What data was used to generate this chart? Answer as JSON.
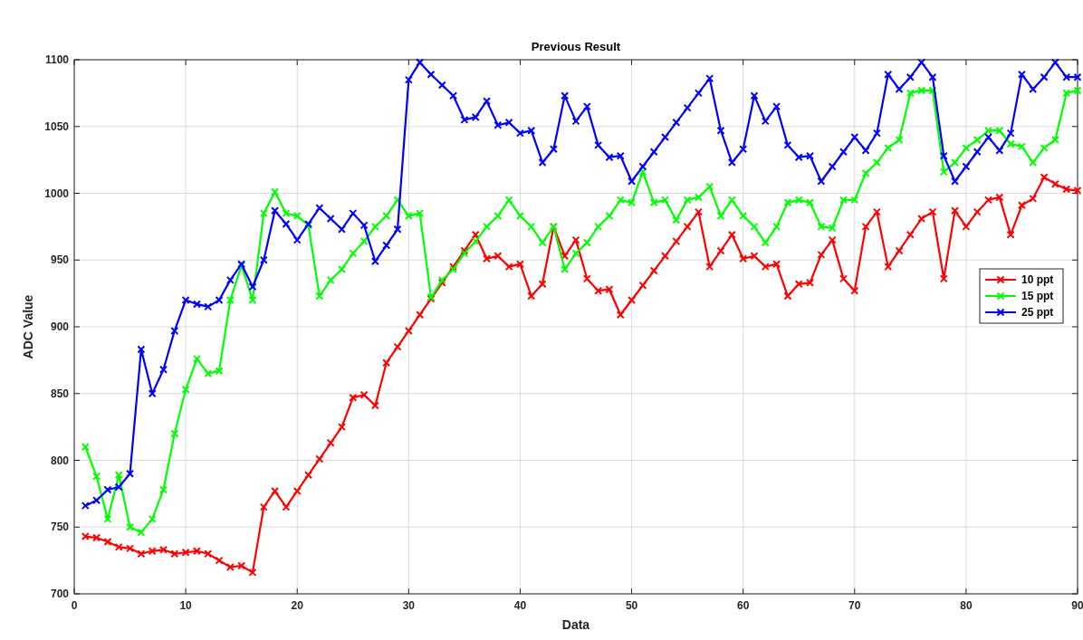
{
  "chart_data": {
    "type": "line",
    "title": "Previous Result",
    "xlabel": "Data",
    "ylabel": "ADC Value",
    "x": [
      1,
      2,
      3,
      4,
      5,
      6,
      7,
      8,
      9,
      10,
      11,
      12,
      13,
      14,
      15,
      16,
      17,
      18,
      19,
      20,
      21,
      22,
      23,
      24,
      25,
      26,
      27,
      28,
      29,
      30,
      31,
      32,
      33,
      34,
      35,
      36,
      37,
      38,
      39,
      40,
      41,
      42,
      43,
      44,
      45,
      46,
      47,
      48,
      49,
      50,
      51,
      52,
      53,
      54,
      55,
      56,
      57,
      58,
      59,
      60,
      61,
      62,
      63,
      64,
      65,
      66,
      67,
      68,
      69,
      70,
      71,
      72,
      73,
      74,
      75,
      76,
      77,
      78,
      79,
      80,
      81,
      82,
      83,
      84,
      85,
      86,
      87,
      88,
      89,
      90
    ],
    "series": [
      {
        "name": "10 ppt",
        "color": "#ff0000",
        "values": [
          743,
          742,
          739,
          735,
          734,
          730,
          732,
          733,
          730,
          731,
          732,
          730,
          725,
          720,
          721,
          716,
          765,
          777,
          765,
          777,
          789,
          801,
          813,
          825,
          847,
          849,
          841,
          873,
          885,
          897,
          909,
          921,
          933,
          945,
          957,
          969,
          951,
          953,
          945,
          947,
          923,
          932,
          975,
          953,
          965,
          936,
          927,
          928,
          909,
          920,
          931,
          942,
          953,
          964,
          975,
          986,
          945,
          957,
          969,
          951,
          953,
          945,
          947,
          923,
          932,
          933,
          954,
          965,
          936,
          927,
          975,
          986,
          945,
          957,
          969,
          981,
          986,
          936,
          987,
          975,
          986,
          995,
          997,
          969,
          991,
          996,
          1012,
          1007,
          1003,
          1002
        ]
      },
      {
        "name": "15 ppt",
        "color": "#00ff00",
        "values": [
          810,
          788,
          756,
          789,
          750,
          746,
          756,
          778,
          820,
          853,
          876,
          865,
          867,
          920,
          946,
          920,
          985,
          1001,
          985,
          983,
          976,
          923,
          935,
          943,
          955,
          964,
          975,
          983,
          995,
          983,
          985,
          922,
          935,
          943,
          955,
          964,
          975,
          983,
          995,
          983,
          975,
          963,
          975,
          943,
          955,
          963,
          975,
          983,
          995,
          993,
          1016,
          993,
          995,
          980,
          995,
          997,
          1005,
          983,
          995,
          983,
          975,
          963,
          975,
          993,
          995,
          993,
          975,
          974,
          995,
          995,
          1015,
          1023,
          1034,
          1040,
          1075,
          1077,
          1077,
          1016,
          1023,
          1034,
          1040,
          1047,
          1047,
          1037,
          1035,
          1023,
          1034,
          1040,
          1075,
          1077
        ]
      },
      {
        "name": "25 ppt",
        "color": "#0000ff",
        "values": [
          766,
          770,
          778,
          780,
          790,
          883,
          850,
          868,
          897,
          920,
          917,
          915,
          920,
          935,
          947,
          930,
          950,
          987,
          977,
          965,
          977,
          989,
          981,
          973,
          985,
          976,
          949,
          961,
          973,
          1085,
          1098,
          1089,
          1081,
          1073,
          1055,
          1057,
          1069,
          1051,
          1053,
          1045,
          1047,
          1023,
          1033,
          1073,
          1054,
          1065,
          1036,
          1027,
          1028,
          1009,
          1020,
          1031,
          1042,
          1053,
          1064,
          1075,
          1086,
          1047,
          1023,
          1033,
          1073,
          1054,
          1065,
          1036,
          1027,
          1028,
          1009,
          1020,
          1031,
          1042,
          1032,
          1045,
          1089,
          1078,
          1087,
          1098,
          1087,
          1028,
          1009,
          1020,
          1031,
          1042,
          1032,
          1045,
          1089,
          1078,
          1087,
          1098,
          1087,
          1087
        ]
      }
    ],
    "xlim": [
      0,
      90
    ],
    "xticks": [
      0,
      10,
      20,
      30,
      40,
      50,
      60,
      70,
      80,
      90
    ],
    "ylim": [
      700,
      1100
    ],
    "yticks": [
      700,
      750,
      800,
      850,
      900,
      950,
      1000,
      1050,
      1100
    ],
    "grid": true,
    "legend": "right",
    "marker": "cross",
    "line_style": "solid"
  }
}
